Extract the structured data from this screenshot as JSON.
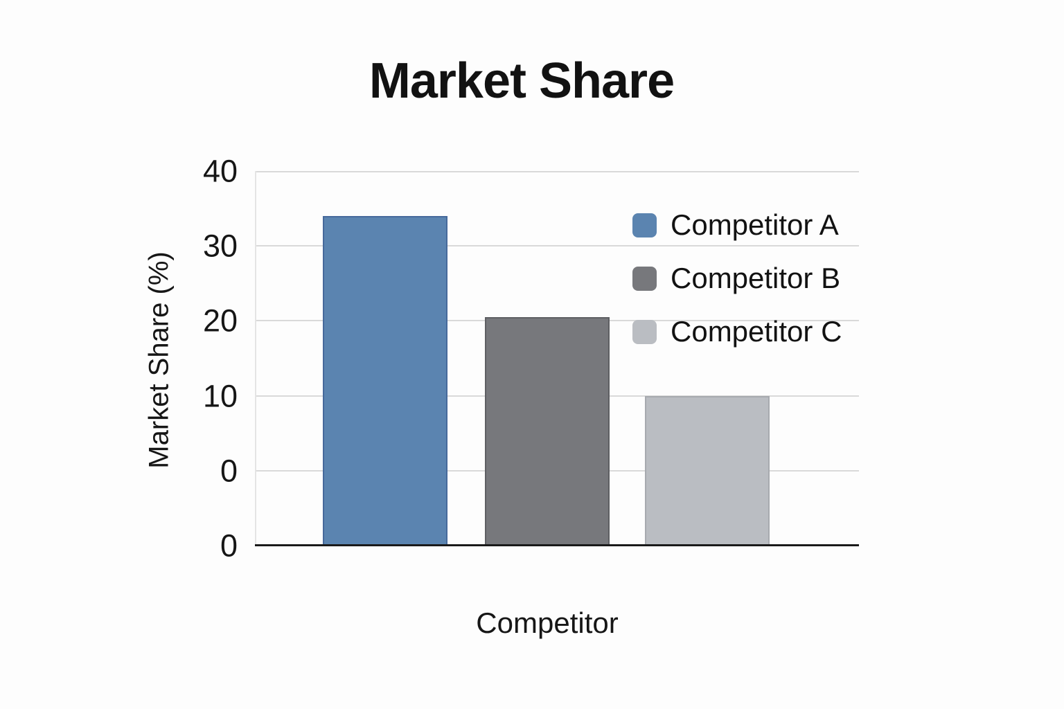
{
  "page": {
    "background": "#fdfdfd"
  },
  "chart_data": {
    "type": "bar",
    "title": "Market Share",
    "xlabel": "Competitor",
    "ylabel": "Market Share (%)",
    "categories": [
      "Competitor A",
      "Competitor B",
      "Competitor C"
    ],
    "series": [
      {
        "name": "Competitor A",
        "value": 34,
        "color": "#5b84b0",
        "border_color": "#46699b"
      },
      {
        "name": "Competitor B",
        "value": 20.5,
        "color": "#77787c",
        "border_color": "#5e5f63"
      },
      {
        "name": "Competitor C",
        "value": 10,
        "color": "#babdc2",
        "border_color": "#a7aaaf"
      }
    ],
    "ylim": [
      -10,
      40
    ],
    "y_tick_labels": [
      "40",
      "30",
      "20",
      "10",
      "0",
      "0"
    ],
    "grid": "horizontal",
    "gridline_color": "#d9d9d9",
    "axis_line_color": "#1a1a1a",
    "legend_position": "top-right-inside"
  }
}
